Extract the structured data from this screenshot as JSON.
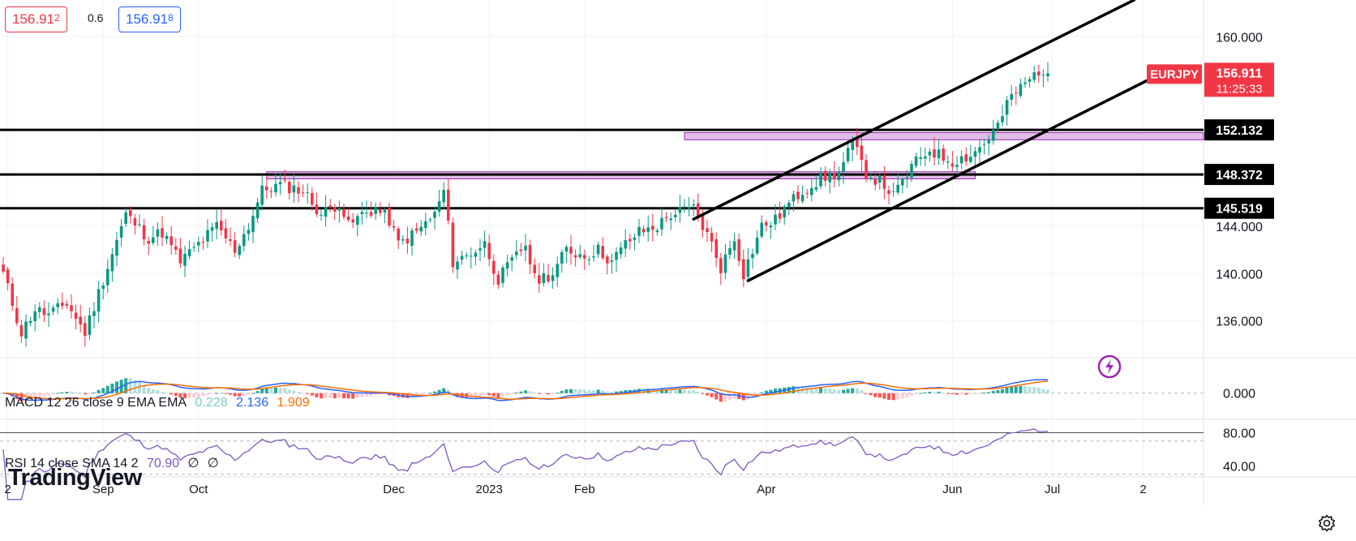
{
  "quote": {
    "sell_main": "156.91",
    "sell_small": "2",
    "spread": "0.6",
    "buy_main": "156.91",
    "buy_small": "8"
  },
  "symbol": {
    "name": "EURJPY",
    "price": "156.911",
    "countdown": "11:25:33"
  },
  "icons": [
    "lightning-icon",
    "gear-icon",
    "tradingview-logo"
  ],
  "branding": {
    "logo_text": "TradingView"
  },
  "colors": {
    "up": "#089981",
    "down": "#f23645",
    "macd_line": "#2962ff",
    "signal_line": "#ff6d00",
    "rsi_line": "#7e57c2",
    "zone_fill": "#e1bee7",
    "zone_border": "#9c27b0",
    "label_red": "#f23645"
  },
  "chart_data": [
    {
      "type": "candlestick",
      "title": "EURJPY",
      "ylim": [
        132.9,
        163.1
      ],
      "price_ticks": [
        160.0,
        144.0,
        140.0,
        136.0
      ],
      "x_labels": [
        {
          "label": "2",
          "i": 1
        },
        {
          "label": "Sep",
          "i": 22
        },
        {
          "label": "Oct",
          "i": 43
        },
        {
          "label": "Dec",
          "i": 86
        },
        {
          "label": "2023",
          "i": 107
        },
        {
          "label": "Feb",
          "i": 128
        },
        {
          "label": "Apr",
          "i": 168
        },
        {
          "label": "Jun",
          "i": 209
        },
        {
          "label": "Jul",
          "i": 231
        },
        {
          "label": "2",
          "i": 251
        }
      ],
      "horizontal_levels": [
        {
          "price": 152.132,
          "label": "152.132"
        },
        {
          "price": 148.372,
          "label": "148.372"
        },
        {
          "price": 145.519,
          "label": "145.519"
        }
      ],
      "zones": [
        {
          "from_i": 58,
          "to_i": 214,
          "low": 148.0,
          "high": 148.6
        },
        {
          "from_i": 150,
          "to_i": 270,
          "low": 151.3,
          "high": 151.9
        }
      ],
      "trend_lines": [
        {
          "i1": 152,
          "p1": 144.6,
          "i2": 249,
          "p2": 163.1
        },
        {
          "i1": 164,
          "p1": 139.4,
          "i2": 256,
          "p2": 157.1
        }
      ],
      "candles_anchor_closes": [
        [
          0,
          140.0
        ],
        [
          4,
          135.0
        ],
        [
          7,
          137.0
        ],
        [
          10,
          136.5
        ],
        [
          14,
          137.5
        ],
        [
          18,
          135.0
        ],
        [
          22,
          139.5
        ],
        [
          27,
          145.0
        ],
        [
          32,
          143.0
        ],
        [
          35,
          143.5
        ],
        [
          39,
          141.0
        ],
        [
          43,
          142.5
        ],
        [
          47,
          144.0
        ],
        [
          51,
          142.0
        ],
        [
          54,
          144.0
        ],
        [
          57,
          147.0
        ],
        [
          61,
          147.5
        ],
        [
          66,
          147.0
        ],
        [
          70,
          145.0
        ],
        [
          74,
          146.0
        ],
        [
          76,
          144.0
        ],
        [
          79,
          145.0
        ],
        [
          82,
          145.5
        ],
        [
          85,
          144.5
        ],
        [
          87,
          142.5
        ],
        [
          91,
          143.5
        ],
        [
          95,
          145.0
        ],
        [
          97,
          147.0
        ],
        [
          99,
          141.0
        ],
        [
          102,
          141.5
        ],
        [
          106,
          142.5
        ],
        [
          109,
          139.5
        ],
        [
          113,
          141.5
        ],
        [
          115,
          142.5
        ],
        [
          117,
          139.5
        ],
        [
          121,
          140.0
        ],
        [
          124,
          142.0
        ],
        [
          128,
          141.5
        ],
        [
          131,
          142.0
        ],
        [
          134,
          141.0
        ],
        [
          137,
          142.5
        ],
        [
          140,
          143.5
        ],
        [
          144,
          144.0
        ],
        [
          147,
          145.0
        ],
        [
          152,
          145.5
        ],
        [
          156,
          142.5
        ],
        [
          158,
          140.5
        ],
        [
          161,
          143.0
        ],
        [
          163,
          140.0
        ],
        [
          167,
          144.0
        ],
        [
          170,
          144.5
        ],
        [
          172,
          145.5
        ],
        [
          176,
          147.0
        ],
        [
          180,
          148.0
        ],
        [
          184,
          148.5
        ],
        [
          187,
          151.0
        ],
        [
          190,
          148.5
        ],
        [
          194,
          147.5
        ],
        [
          196,
          146.5
        ],
        [
          200,
          149.0
        ],
        [
          204,
          150.5
        ],
        [
          206,
          150.0
        ],
        [
          209,
          149.5
        ],
        [
          213,
          150.0
        ],
        [
          216,
          151.0
        ],
        [
          219,
          152.5
        ],
        [
          222,
          155.0
        ],
        [
          225,
          156.0
        ],
        [
          228,
          157.2
        ],
        [
          230,
          156.911
        ]
      ],
      "last_price": 156.911
    },
    {
      "type": "line",
      "title": "MACD 12 26 close 9 EMA EMA",
      "legend_values": {
        "histogram": "0.228",
        "macd": "2.136",
        "signal": "1.909"
      },
      "zero_label": "0.000",
      "ylim": [
        -3.2,
        4.6
      ]
    },
    {
      "type": "line",
      "title": "RSI 14 close SMA 14 2",
      "legend_values": {
        "rsi": "70.90",
        "a": "∅",
        "b": "∅"
      },
      "tick_labels": [
        80.0,
        40.0
      ],
      "tick_text": [
        "80.00",
        "40.00"
      ],
      "ylim": [
        27,
        96
      ],
      "bands": [
        70,
        30
      ]
    }
  ]
}
